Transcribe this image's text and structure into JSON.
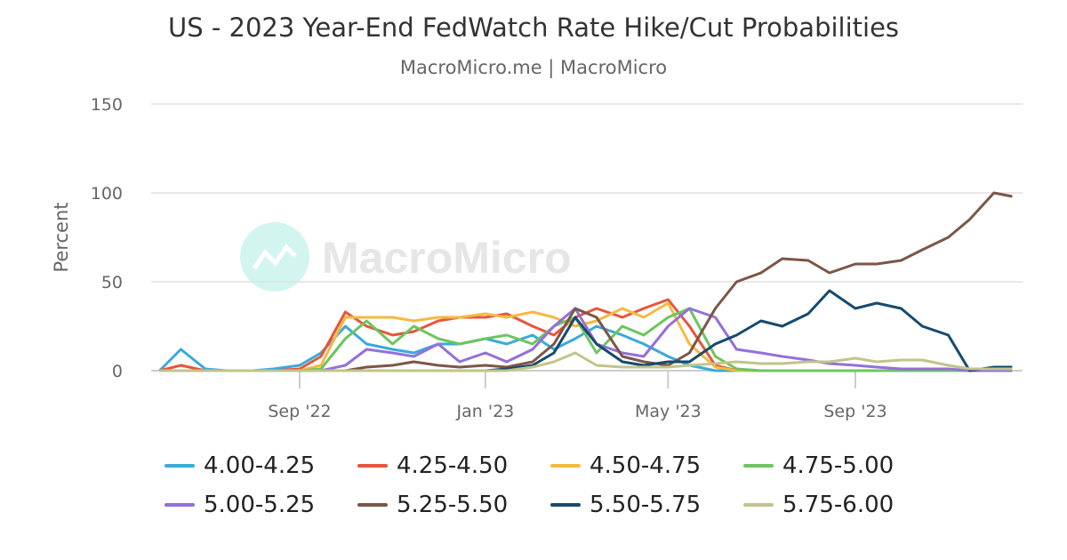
{
  "title": "US - 2023 Year-End FedWatch Rate Hike/Cut Probabilities",
  "subtitle": "MacroMicro.me | MacroMicro",
  "watermark": "MacroMicro",
  "chart_data": {
    "type": "line",
    "ylabel": "Percent",
    "xlabel": "",
    "ylim": [
      0,
      150
    ],
    "yticks": [
      0,
      50,
      100,
      150
    ],
    "xticks": [
      {
        "date": "2022-09-01",
        "label": "Sep '22"
      },
      {
        "date": "2023-01-01",
        "label": "Jan '23"
      },
      {
        "date": "2023-05-01",
        "label": "May '23"
      },
      {
        "date": "2023-09-01",
        "label": "Sep '23"
      }
    ],
    "xlim": [
      "2022-06-01",
      "2023-12-13"
    ],
    "grid": true,
    "legend": "bottom",
    "x": [
      "2022-06-01",
      "2022-06-15",
      "2022-07-01",
      "2022-07-15",
      "2022-08-01",
      "2022-08-15",
      "2022-09-01",
      "2022-09-15",
      "2022-10-01",
      "2022-10-15",
      "2022-11-01",
      "2022-11-15",
      "2022-12-01",
      "2022-12-15",
      "2023-01-01",
      "2023-01-15",
      "2023-02-01",
      "2023-02-15",
      "2023-03-01",
      "2023-03-15",
      "2023-04-01",
      "2023-04-15",
      "2023-05-01",
      "2023-05-15",
      "2023-06-01",
      "2023-06-15",
      "2023-07-01",
      "2023-07-15",
      "2023-08-01",
      "2023-08-15",
      "2023-09-01",
      "2023-09-15",
      "2023-10-01",
      "2023-10-15",
      "2023-11-01",
      "2023-11-15",
      "2023-12-01",
      "2023-12-13"
    ],
    "series": [
      {
        "name": "4.00-4.25",
        "color": "#3aa9dc",
        "values": [
          0,
          12,
          1,
          0,
          0,
          1,
          3,
          10,
          25,
          15,
          12,
          10,
          15,
          15,
          18,
          15,
          20,
          12,
          18,
          25,
          20,
          15,
          8,
          3,
          0,
          0,
          0,
          0,
          0,
          0,
          0,
          0,
          0,
          0,
          0,
          0,
          0,
          0
        ]
      },
      {
        "name": "4.25-4.50",
        "color": "#e8553a",
        "values": [
          0,
          3,
          0,
          0,
          0,
          0,
          1,
          8,
          33,
          25,
          20,
          22,
          28,
          30,
          30,
          32,
          25,
          20,
          30,
          35,
          30,
          35,
          40,
          25,
          3,
          0,
          0,
          0,
          0,
          0,
          0,
          0,
          0,
          0,
          0,
          0,
          0,
          0
        ]
      },
      {
        "name": "4.50-4.75",
        "color": "#f5b942",
        "values": [
          0,
          0,
          0,
          0,
          0,
          0,
          0,
          3,
          30,
          30,
          30,
          28,
          30,
          30,
          32,
          30,
          33,
          30,
          25,
          28,
          35,
          30,
          38,
          15,
          2,
          0,
          0,
          0,
          0,
          0,
          0,
          0,
          0,
          0,
          0,
          0,
          0,
          0
        ]
      },
      {
        "name": "4.75-5.00",
        "color": "#6cc55f",
        "values": [
          0,
          0,
          0,
          0,
          0,
          0,
          0,
          1,
          18,
          28,
          15,
          25,
          18,
          15,
          18,
          20,
          15,
          25,
          30,
          10,
          25,
          20,
          30,
          35,
          8,
          1,
          0,
          0,
          0,
          0,
          0,
          0,
          0,
          0,
          0,
          0,
          0,
          0
        ]
      },
      {
        "name": "5.00-5.25",
        "color": "#9370db",
        "values": [
          0,
          0,
          0,
          0,
          0,
          0,
          0,
          0,
          3,
          12,
          10,
          8,
          15,
          5,
          10,
          5,
          12,
          25,
          35,
          15,
          10,
          8,
          25,
          35,
          30,
          12,
          10,
          8,
          6,
          4,
          3,
          2,
          1,
          1,
          1,
          0,
          0,
          0
        ]
      },
      {
        "name": "5.25-5.50",
        "color": "#7b5647",
        "values": [
          0,
          0,
          0,
          0,
          0,
          0,
          0,
          0,
          0,
          2,
          3,
          5,
          3,
          2,
          3,
          2,
          5,
          15,
          35,
          30,
          8,
          5,
          3,
          10,
          35,
          50,
          55,
          63,
          62,
          55,
          60,
          60,
          62,
          68,
          75,
          85,
          100,
          98
        ]
      },
      {
        "name": "5.50-5.75",
        "color": "#164a6e",
        "values": [
          0,
          0,
          0,
          0,
          0,
          0,
          0,
          0,
          0,
          0,
          0,
          0,
          0,
          0,
          0,
          1,
          3,
          10,
          30,
          15,
          5,
          3,
          5,
          5,
          15,
          20,
          28,
          25,
          32,
          45,
          35,
          38,
          35,
          25,
          20,
          0,
          2,
          2
        ]
      },
      {
        "name": "5.75-6.00",
        "color": "#c2c48a",
        "values": [
          0,
          0,
          0,
          0,
          0,
          0,
          0,
          0,
          0,
          0,
          0,
          0,
          0,
          0,
          0,
          0,
          2,
          5,
          10,
          3,
          2,
          2,
          2,
          3,
          4,
          5,
          4,
          4,
          5,
          5,
          7,
          5,
          6,
          6,
          3,
          1,
          1,
          1
        ]
      }
    ]
  }
}
